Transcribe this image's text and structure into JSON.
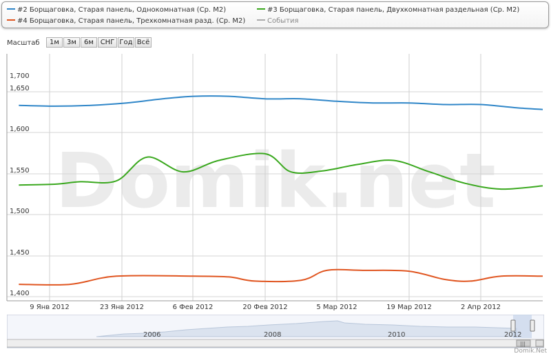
{
  "legend": [
    {
      "label": "#2 Борщаговка, Старая панель, Однокомнатная (Ср. М2)",
      "color": "#2f86c8"
    },
    {
      "label": "#3 Борщаговка, Старая панель, Двухкомнатная раздельная (Ср. М2)",
      "color": "#3aa81e"
    },
    {
      "label": "#4 Борщаговка, Старая панель, Трехкомнатная разд. (Ср. М2)",
      "color": "#e05520"
    },
    {
      "label": "События",
      "color": "#aaaaaa"
    }
  ],
  "range_selector": {
    "label": "Масштаб",
    "buttons": [
      "1м",
      "3м",
      "6м",
      "СНГ",
      "Год",
      "Всё"
    ]
  },
  "chart_data": {
    "type": "line",
    "watermark": "Domik.net",
    "y_tick_labels": [
      "1,400",
      "1,450",
      "1,500",
      "1,550",
      "1,600",
      "1,650",
      "1,700"
    ],
    "x_tick_labels": [
      "9 Янв 2012",
      "23 Янв 2012",
      "6 Фев 2012",
      "20 Фев 2012",
      "5 Мар 2012",
      "19 Мар 2012",
      "2 Апр 2012"
    ],
    "x_range": [
      "2012-01-03",
      "2012-04-15"
    ],
    "grid": true,
    "series": [
      {
        "color": "#2f86c8",
        "points": [
          [
            "2012-01-03",
            1633
          ],
          [
            "2012-01-10",
            1632
          ],
          [
            "2012-01-17",
            1633
          ],
          [
            "2012-01-24",
            1636
          ],
          [
            "2012-01-31",
            1641
          ],
          [
            "2012-02-06",
            1644
          ],
          [
            "2012-02-13",
            1644
          ],
          [
            "2012-02-20",
            1641
          ],
          [
            "2012-02-27",
            1641
          ],
          [
            "2012-03-05",
            1638
          ],
          [
            "2012-03-12",
            1636
          ],
          [
            "2012-03-19",
            1636
          ],
          [
            "2012-03-26",
            1634
          ],
          [
            "2012-04-02",
            1634
          ],
          [
            "2012-04-09",
            1630
          ],
          [
            "2012-04-15",
            1628
          ]
        ]
      },
      {
        "color": "#3aa81e",
        "points": [
          [
            "2012-01-03",
            1536
          ],
          [
            "2012-01-10",
            1537
          ],
          [
            "2012-01-15",
            1540
          ],
          [
            "2012-01-22",
            1541
          ],
          [
            "2012-01-28",
            1570
          ],
          [
            "2012-02-04",
            1552
          ],
          [
            "2012-02-11",
            1566
          ],
          [
            "2012-02-20",
            1574
          ],
          [
            "2012-02-25",
            1552
          ],
          [
            "2012-03-02",
            1553
          ],
          [
            "2012-03-09",
            1561
          ],
          [
            "2012-03-16",
            1566
          ],
          [
            "2012-03-23",
            1552
          ],
          [
            "2012-03-30",
            1538
          ],
          [
            "2012-04-06",
            1531
          ],
          [
            "2012-04-15",
            1535
          ]
        ]
      },
      {
        "color": "#e05520",
        "points": [
          [
            "2012-01-03",
            1415
          ],
          [
            "2012-01-13",
            1415
          ],
          [
            "2012-01-22",
            1425
          ],
          [
            "2012-02-06",
            1425
          ],
          [
            "2012-02-13",
            1424
          ],
          [
            "2012-02-18",
            1419
          ],
          [
            "2012-02-27",
            1420
          ],
          [
            "2012-03-03",
            1432
          ],
          [
            "2012-03-10",
            1432
          ],
          [
            "2012-03-19",
            1431
          ],
          [
            "2012-03-26",
            1421
          ],
          [
            "2012-03-31",
            1419
          ],
          [
            "2012-04-06",
            1425
          ],
          [
            "2012-04-15",
            1425
          ]
        ]
      }
    ]
  },
  "navigator": {
    "year_labels": [
      "2006",
      "2008",
      "2010",
      "2012"
    ]
  },
  "credit": "Domik.Net"
}
